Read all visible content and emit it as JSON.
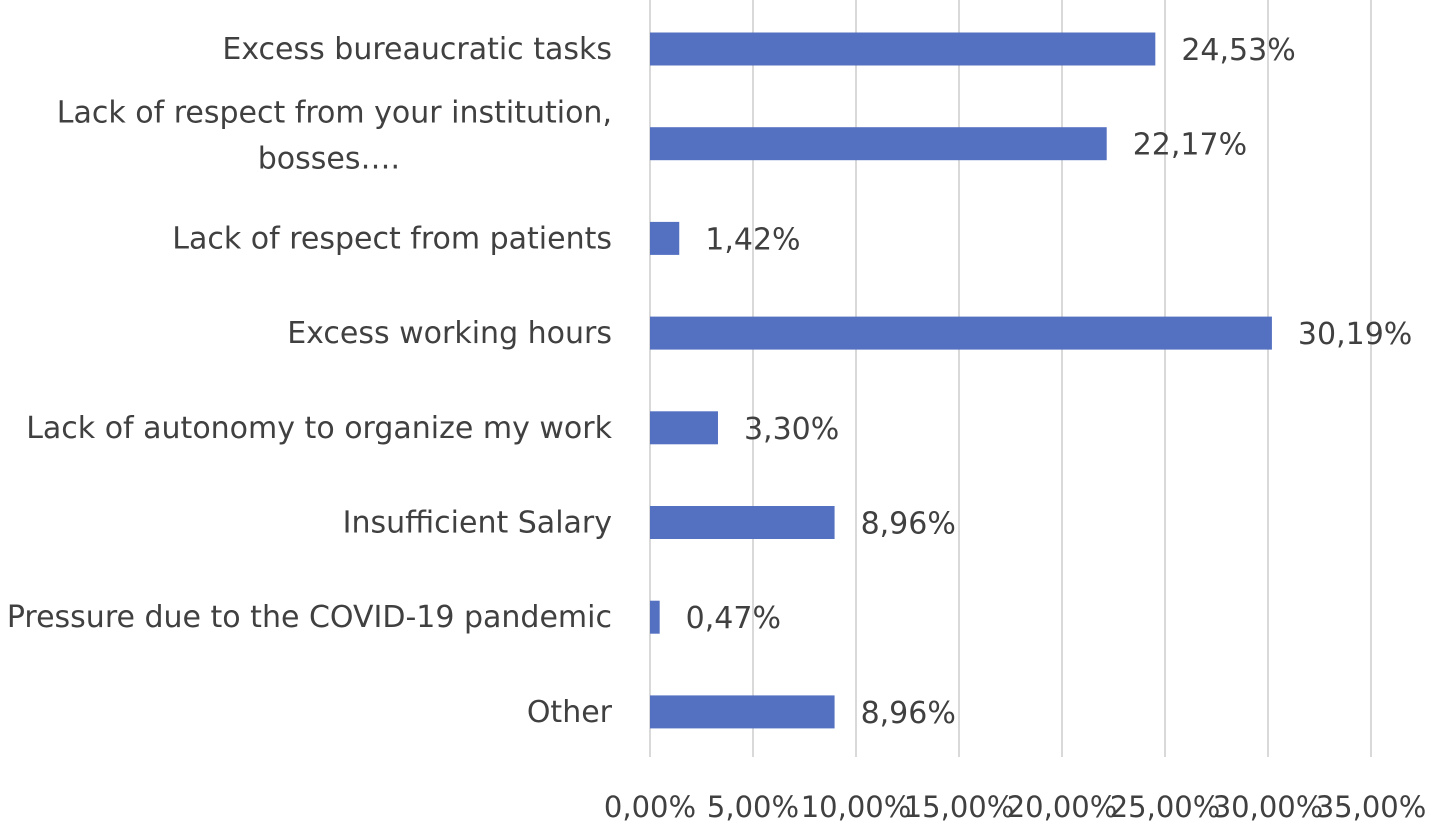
{
  "chart_data": {
    "type": "bar",
    "orientation": "horizontal",
    "categories": [
      "Excess bureaucratic tasks",
      "Lack of respect from your institution, bosses….",
      "Lack of respect from patients",
      "Excess working hours",
      "Lack of autonomy to organize my work",
      "Insufficient Salary",
      "Pressure due to the COVID-19 pandemic",
      "Other"
    ],
    "category_lines": [
      [
        "Excess bureaucratic tasks"
      ],
      [
        "Lack of respect from your institution,",
        "bosses…."
      ],
      [
        "Lack of respect from patients"
      ],
      [
        "Excess working hours"
      ],
      [
        "Lack of autonomy to organize my work"
      ],
      [
        "Insufficient Salary"
      ],
      [
        "Pressure due to the COVID-19 pandemic"
      ],
      [
        "Other"
      ]
    ],
    "values": [
      24.53,
      22.17,
      1.42,
      30.19,
      3.3,
      8.96,
      0.47,
      8.96
    ],
    "data_labels": [
      "24,53%",
      "22,17%",
      "1,42%",
      "30,19%",
      "3,30%",
      "8,96%",
      "0,47%",
      "8,96%"
    ],
    "x_ticks": [
      0,
      5,
      10,
      15,
      20,
      25,
      30,
      35
    ],
    "x_tick_labels": [
      "0,00%",
      "5,00%",
      "10,00%",
      "15,00%",
      "20,00%",
      "25,00%",
      "30,00%",
      "35,00%"
    ],
    "xlim": [
      0,
      35
    ],
    "title": "",
    "xlabel": "",
    "ylabel": "",
    "grid": true,
    "legend": false,
    "colors": {
      "bar": "#5470c1",
      "grid": "#d9d9d9",
      "text": "#404040"
    }
  }
}
